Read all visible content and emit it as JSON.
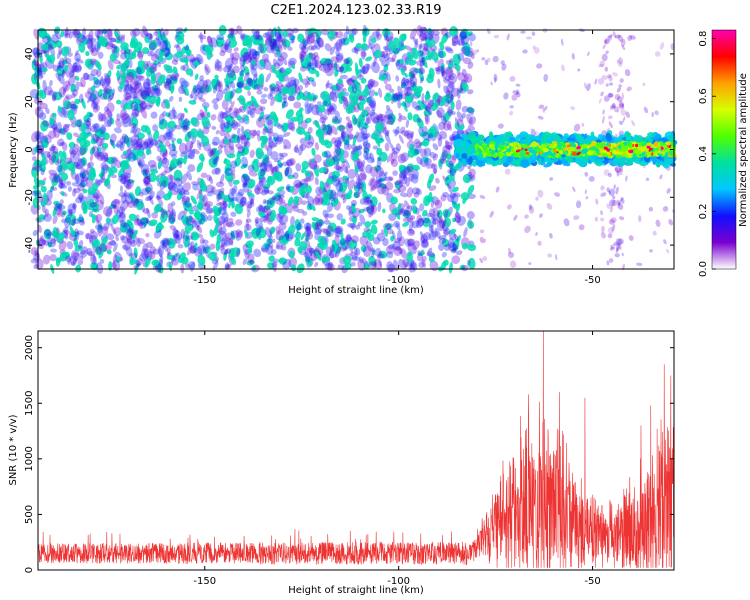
{
  "title": "C2E1.2024.123.02.33.R19",
  "colors": {
    "snr_line": "#ee3333",
    "scatter_fill": "#7a1fe0",
    "frame": "#000000"
  },
  "chart_data": [
    {
      "type": "heatmap",
      "xlabel": "Height of straight line (km)",
      "ylabel": "Frequency (Hz)",
      "xlim": [
        -193,
        -29
      ],
      "ylim": [
        -50,
        50
      ],
      "xticks": [
        -150,
        -100,
        -50
      ],
      "yticks": [
        -40,
        -20,
        0,
        20,
        40
      ],
      "noise_region": {
        "x": [
          -193,
          -82
        ],
        "y": [
          -50,
          50
        ],
        "amplitude_range": [
          0.1,
          0.35
        ]
      },
      "sparse_region": {
        "x": [
          -82,
          -29
        ],
        "amplitude_range": [
          0.05,
          0.15
        ]
      },
      "signal_band": {
        "x": [
          -85,
          -29
        ],
        "center_frequency": 0,
        "half_width": [
          4,
          7
        ],
        "amplitude_range": [
          0.2,
          0.82
        ]
      },
      "colorbar": {
        "label": "Normalized spectral amplitude",
        "range": [
          0.0,
          0.83
        ],
        "ticks": [
          0.0,
          0.2,
          0.4,
          0.6,
          0.8
        ],
        "colormap": [
          "#ffffff",
          "#7a00d0",
          "#1010ff",
          "#00c8ff",
          "#00e0a0",
          "#50ff00",
          "#d8ff00",
          "#ffa000",
          "#ff0000",
          "#ff00b0"
        ]
      }
    },
    {
      "type": "line",
      "xlabel": "Height of straight line (km)",
      "ylabel": "SNR (10 * v/v)",
      "xlim": [
        -193,
        -29
      ],
      "ylim": [
        0,
        2150
      ],
      "xticks": [
        -150,
        -100,
        -50
      ],
      "yticks": [
        0,
        500,
        1000,
        1500,
        2000
      ],
      "envelope": [
        {
          "x": -193,
          "base": 150,
          "spread": 100
        },
        {
          "x": -82,
          "base": 150,
          "spread": 120
        },
        {
          "x": -78,
          "base": 300,
          "spread": 250
        },
        {
          "x": -72,
          "base": 500,
          "spread": 700
        },
        {
          "x": -65,
          "base": 600,
          "spread": 1000
        },
        {
          "x": -58,
          "base": 550,
          "spread": 900
        },
        {
          "x": -52,
          "base": 350,
          "spread": 500
        },
        {
          "x": -45,
          "base": 300,
          "spread": 350
        },
        {
          "x": -38,
          "base": 400,
          "spread": 700
        },
        {
          "x": -29,
          "base": 500,
          "spread": 1200
        }
      ],
      "peaks": [
        {
          "x": -62.7,
          "y": 2150
        },
        {
          "x": -66.5,
          "y": 1580
        },
        {
          "x": -58.5,
          "y": 1600
        },
        {
          "x": -52.0,
          "y": 1550
        },
        {
          "x": -31.5,
          "y": 1850
        },
        {
          "x": -29.8,
          "y": 1750
        },
        {
          "x": -35.0,
          "y": 1480
        },
        {
          "x": -37.5,
          "y": 1300
        }
      ]
    }
  ]
}
